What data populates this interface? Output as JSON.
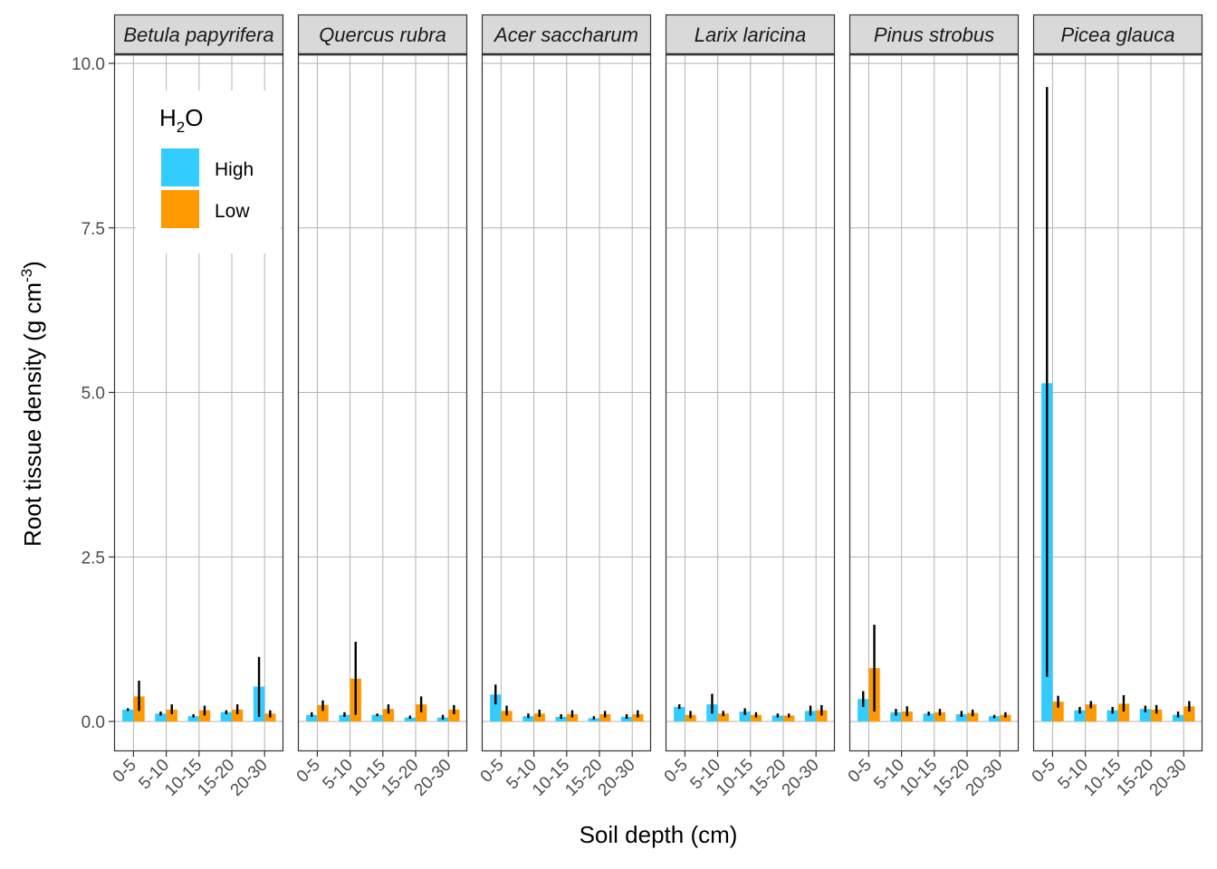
{
  "chart_data": {
    "type": "bar",
    "xlabel": "Soil depth (cm)",
    "ylabel": {
      "main": "Root tissue density (g cm",
      "superscript": "-3",
      "close": ")"
    },
    "ylim": [
      -0.45,
      10.5
    ],
    "yticks": [
      0.0,
      2.5,
      5.0,
      7.5,
      10.0
    ],
    "ytick_labels": [
      "0.0",
      "2.5",
      "5.0",
      "7.5",
      "10.0"
    ],
    "grid": true,
    "legend": {
      "title": {
        "main": "H",
        "subscript": "2",
        "rest": "O"
      },
      "placement": "top-left inside first facet",
      "entries": [
        {
          "name": "High",
          "color": "#33CCFF"
        },
        {
          "name": "Low",
          "color": "#FF9900"
        }
      ]
    },
    "categories": [
      "0-5",
      "5-10",
      "10-15",
      "15-20",
      "20-30"
    ],
    "facets": [
      {
        "label": "Betula papyrifera",
        "series": [
          {
            "name": "High",
            "values": [
              0.18,
              0.12,
              0.08,
              0.14,
              0.53
            ],
            "err_low": [
              0.16,
              0.09,
              0.06,
              0.11,
              0.07
            ],
            "err_high": [
              0.2,
              0.15,
              0.11,
              0.17,
              0.98
            ]
          },
          {
            "name": "Low",
            "values": [
              0.38,
              0.18,
              0.17,
              0.18,
              0.12
            ],
            "err_low": [
              0.16,
              0.11,
              0.09,
              0.11,
              0.06
            ],
            "err_high": [
              0.62,
              0.26,
              0.24,
              0.26,
              0.17
            ]
          }
        ]
      },
      {
        "label": "Quercus rubra",
        "series": [
          {
            "name": "High",
            "values": [
              0.1,
              0.1,
              0.1,
              0.06,
              0.06
            ],
            "err_low": [
              0.07,
              0.07,
              0.08,
              0.04,
              0.03
            ],
            "err_high": [
              0.14,
              0.14,
              0.12,
              0.09,
              0.1
            ]
          },
          {
            "name": "Low",
            "values": [
              0.25,
              0.65,
              0.19,
              0.26,
              0.18
            ],
            "err_low": [
              0.16,
              0.1,
              0.12,
              0.14,
              0.11
            ],
            "err_high": [
              0.32,
              1.21,
              0.26,
              0.38,
              0.25
            ]
          }
        ]
      },
      {
        "label": "Acer saccharum",
        "series": [
          {
            "name": "High",
            "values": [
              0.41,
              0.08,
              0.07,
              0.05,
              0.07
            ],
            "err_low": [
              0.26,
              0.05,
              0.04,
              0.03,
              0.04
            ],
            "err_high": [
              0.56,
              0.12,
              0.11,
              0.08,
              0.11
            ]
          },
          {
            "name": "Low",
            "values": [
              0.16,
              0.12,
              0.11,
              0.11,
              0.11
            ],
            "err_low": [
              0.09,
              0.07,
              0.06,
              0.06,
              0.06
            ],
            "err_high": [
              0.24,
              0.18,
              0.17,
              0.16,
              0.17
            ]
          }
        ]
      },
      {
        "label": "Larix laricina",
        "series": [
          {
            "name": "High",
            "values": [
              0.22,
              0.26,
              0.15,
              0.09,
              0.16
            ],
            "err_low": [
              0.19,
              0.12,
              0.1,
              0.06,
              0.09
            ],
            "err_high": [
              0.26,
              0.42,
              0.2,
              0.12,
              0.24
            ]
          },
          {
            "name": "Low",
            "values": [
              0.1,
              0.12,
              0.1,
              0.09,
              0.17
            ],
            "err_low": [
              0.05,
              0.08,
              0.06,
              0.06,
              0.09
            ],
            "err_high": [
              0.16,
              0.16,
              0.14,
              0.12,
              0.25
            ]
          }
        ]
      },
      {
        "label": "Pinus strobus",
        "series": [
          {
            "name": "High",
            "values": [
              0.34,
              0.14,
              0.12,
              0.11,
              0.08
            ],
            "err_low": [
              0.22,
              0.09,
              0.09,
              0.07,
              0.05
            ],
            "err_high": [
              0.46,
              0.19,
              0.15,
              0.16,
              0.1
            ]
          },
          {
            "name": "Low",
            "values": [
              0.81,
              0.15,
              0.14,
              0.13,
              0.1
            ],
            "err_low": [
              0.15,
              0.08,
              0.09,
              0.08,
              0.06
            ],
            "err_high": [
              1.47,
              0.23,
              0.19,
              0.18,
              0.14
            ]
          }
        ]
      },
      {
        "label": "Picea glauca",
        "series": [
          {
            "name": "High",
            "values": [
              5.14,
              0.17,
              0.17,
              0.19,
              0.1
            ],
            "err_low": [
              0.68,
              0.12,
              0.12,
              0.14,
              0.06
            ],
            "err_high": [
              9.64,
              0.22,
              0.22,
              0.24,
              0.15
            ]
          },
          {
            "name": "Low",
            "values": [
              0.3,
              0.26,
              0.27,
              0.18,
              0.23
            ],
            "err_low": [
              0.21,
              0.2,
              0.15,
              0.12,
              0.15
            ],
            "err_high": [
              0.39,
              0.31,
              0.4,
              0.25,
              0.31
            ]
          }
        ]
      }
    ]
  }
}
